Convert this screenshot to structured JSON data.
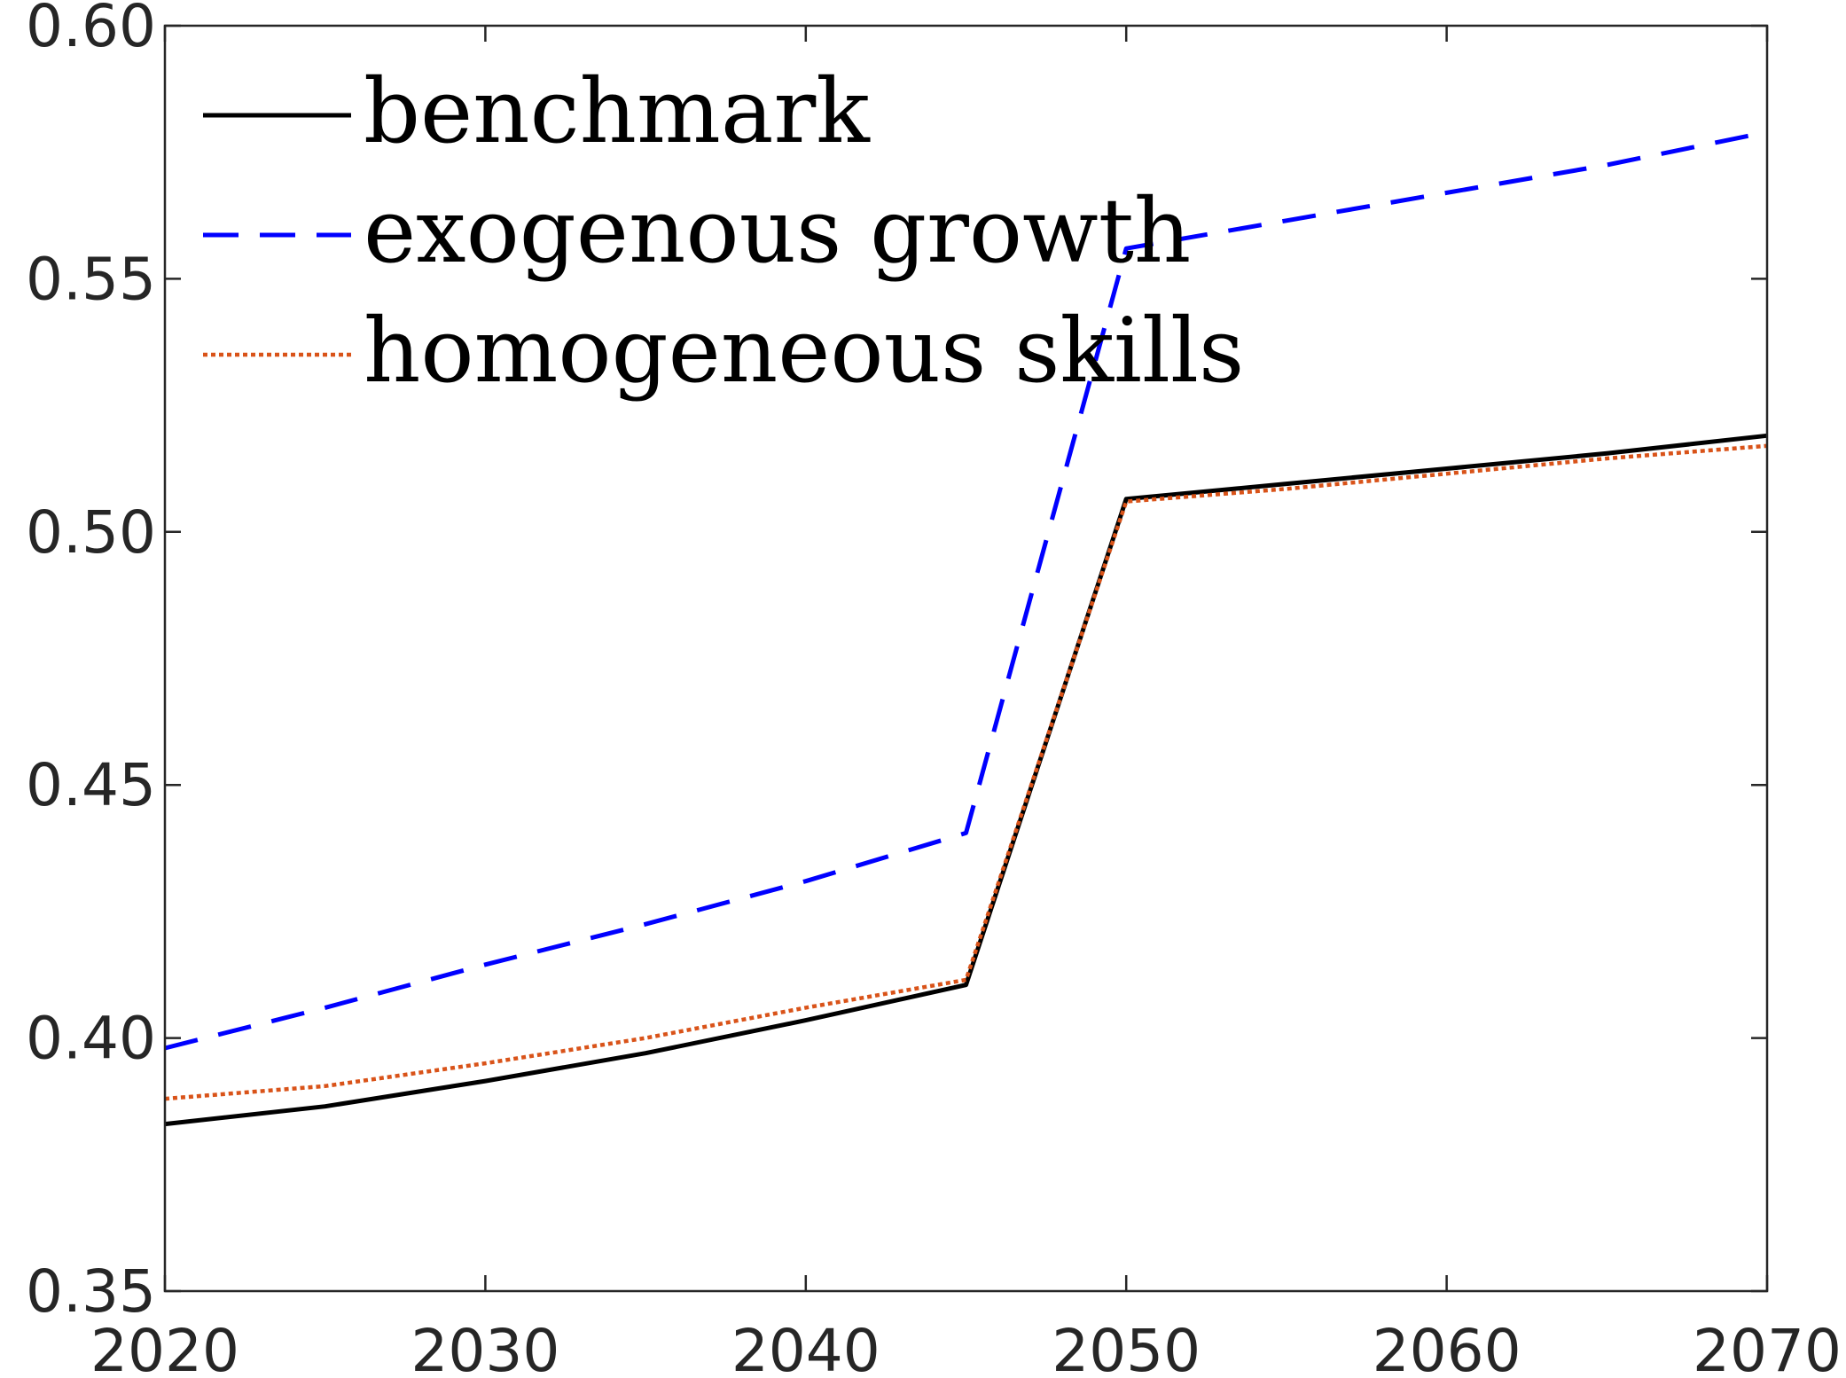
{
  "chart_data": {
    "type": "line",
    "title": "",
    "xlabel": "",
    "ylabel": "",
    "xlim": [
      2020,
      2070
    ],
    "ylim": [
      0.35,
      0.6
    ],
    "x_ticks": [
      2020,
      2030,
      2040,
      2050,
      2060,
      2070
    ],
    "y_ticks": [
      0.35,
      0.4,
      0.45,
      0.5,
      0.55,
      0.6
    ],
    "y_tick_labels": [
      "0.35",
      "0.40",
      "0.45",
      "0.50",
      "0.55",
      "0.60"
    ],
    "x_tick_labels": [
      "2020",
      "2030",
      "2040",
      "2050",
      "2060",
      "2070"
    ],
    "grid": false,
    "legend_position": "top-left",
    "x": [
      2020,
      2025,
      2030,
      2035,
      2040,
      2045,
      2050,
      2055,
      2060,
      2065,
      2070
    ],
    "series": [
      {
        "name": "benchmark",
        "color": "#000000",
        "style": "solid",
        "values": [
          0.383,
          0.3865,
          0.3915,
          0.397,
          0.4035,
          0.4105,
          0.5065,
          0.5095,
          0.5125,
          0.5155,
          0.519
        ]
      },
      {
        "name": "exogenous growth",
        "color": "#0000ff",
        "style": "dashed",
        "values": [
          0.398,
          0.406,
          0.4145,
          0.4225,
          0.431,
          0.4405,
          0.556,
          0.5615,
          0.567,
          0.5725,
          0.579
        ]
      },
      {
        "name": "homogeneous skills",
        "color": "#d95319",
        "style": "dotted",
        "values": [
          0.388,
          0.3905,
          0.395,
          0.4,
          0.406,
          0.4115,
          0.506,
          0.5085,
          0.5115,
          0.5145,
          0.517
        ]
      }
    ]
  }
}
